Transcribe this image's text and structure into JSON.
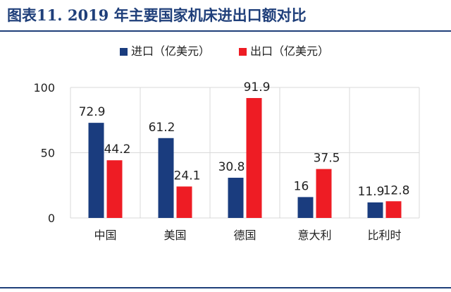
{
  "title": "图表11.  2019 年主要国家机床进出口额对比",
  "colors": {
    "import": "#1a3c7e",
    "export": "#ee1c24",
    "title": "#1f3f7a",
    "grid": "#d9d9d9",
    "text": "#222222"
  },
  "chart_data": {
    "type": "bar",
    "categories": [
      "中国",
      "美国",
      "德国",
      "意大利",
      "比利时"
    ],
    "series": [
      {
        "name": "进口（亿美元）",
        "values": [
          72.9,
          61.2,
          30.8,
          16,
          11.9
        ],
        "labels": [
          "72.9",
          "61.2",
          "30.8",
          "16",
          "11.9"
        ]
      },
      {
        "name": "出口（亿美元）",
        "values": [
          44.2,
          24.1,
          91.9,
          37.5,
          12.8
        ],
        "labels": [
          "44.2",
          "24.1",
          "91.9",
          "37.5",
          "12.8"
        ]
      }
    ],
    "ylim": [
      0,
      100
    ],
    "yticks": [
      0,
      50,
      100
    ],
    "ytick_labels": [
      "0",
      "50",
      "100"
    ],
    "grid": true,
    "legend": "top-center",
    "xlabel": "",
    "ylabel": ""
  }
}
